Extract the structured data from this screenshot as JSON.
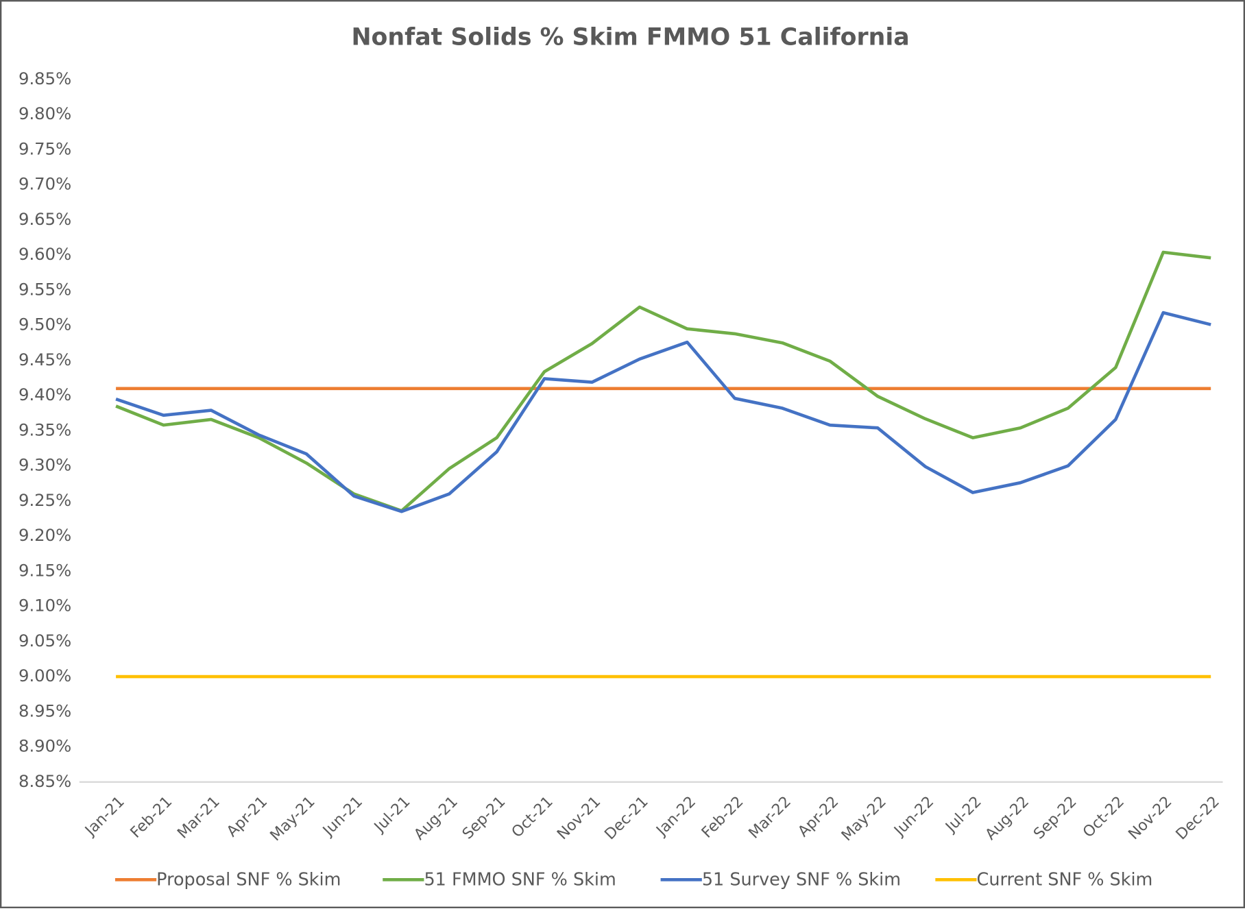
{
  "chart_data": {
    "type": "line",
    "title": "Nonfat Solids % Skim FMMO 51 California",
    "categories": [
      "Jan-21",
      "Feb-21",
      "Mar-21",
      "Apr-21",
      "May-21",
      "Jun-21",
      "Jul-21",
      "Aug-21",
      "Sep-21",
      "Oct-21",
      "Nov-21",
      "Dec-21",
      "Jan-22",
      "Feb-22",
      "Mar-22",
      "Apr-22",
      "May-22",
      "Jun-22",
      "Jul-22",
      "Aug-22",
      "Sep-22",
      "Oct-22",
      "Nov-22",
      "Dec-22"
    ],
    "series": [
      {
        "name": "Proposal SNF % Skim",
        "color": "#ed7d31",
        "values": [
          9.41,
          9.41,
          9.41,
          9.41,
          9.41,
          9.41,
          9.41,
          9.41,
          9.41,
          9.41,
          9.41,
          9.41,
          9.41,
          9.41,
          9.41,
          9.41,
          9.41,
          9.41,
          9.41,
          9.41,
          9.41,
          9.41,
          9.41,
          9.41
        ]
      },
      {
        "name": "51 FMMO SNF % Skim",
        "color": "#70ad47",
        "values": [
          9.385,
          9.358,
          9.366,
          9.34,
          9.304,
          9.26,
          9.236,
          9.296,
          9.34,
          9.434,
          9.474,
          9.526,
          9.495,
          9.488,
          9.475,
          9.449,
          9.399,
          9.367,
          9.34,
          9.354,
          9.382,
          9.44,
          9.604,
          9.596
        ]
      },
      {
        "name": "51 Survey SNF % Skim",
        "color": "#4472c4",
        "values": [
          9.395,
          9.372,
          9.379,
          9.344,
          9.317,
          9.257,
          9.235,
          9.26,
          9.32,
          9.424,
          9.419,
          9.452,
          9.476,
          9.396,
          9.382,
          9.358,
          9.354,
          9.299,
          9.262,
          9.276,
          9.3,
          9.366,
          9.518,
          9.501
        ]
      },
      {
        "name": "Current SNF % Skim",
        "color": "#ffc000",
        "values": [
          9.0,
          9.0,
          9.0,
          9.0,
          9.0,
          9.0,
          9.0,
          9.0,
          9.0,
          9.0,
          9.0,
          9.0,
          9.0,
          9.0,
          9.0,
          9.0,
          9.0,
          9.0,
          9.0,
          9.0,
          9.0,
          9.0,
          9.0,
          9.0
        ]
      }
    ],
    "ylim": [
      8.85,
      9.85
    ],
    "yticks": [
      {
        "value": 8.85,
        "label": "8.85%"
      },
      {
        "value": 8.9,
        "label": "8.90%"
      },
      {
        "value": 8.95,
        "label": "8.95%"
      },
      {
        "value": 9.0,
        "label": "9.00%"
      },
      {
        "value": 9.05,
        "label": "9.05%"
      },
      {
        "value": 9.1,
        "label": "9.10%"
      },
      {
        "value": 9.15,
        "label": "9.15%"
      },
      {
        "value": 9.2,
        "label": "9.20%"
      },
      {
        "value": 9.25,
        "label": "9.25%"
      },
      {
        "value": 9.3,
        "label": "9.30%"
      },
      {
        "value": 9.35,
        "label": "9.35%"
      },
      {
        "value": 9.4,
        "label": "9.40%"
      },
      {
        "value": 9.45,
        "label": "9.45%"
      },
      {
        "value": 9.5,
        "label": "9.50%"
      },
      {
        "value": 9.55,
        "label": "9.55%"
      },
      {
        "value": 9.6,
        "label": "9.60%"
      },
      {
        "value": 9.65,
        "label": "9.65%"
      },
      {
        "value": 9.7,
        "label": "9.70%"
      },
      {
        "value": 9.75,
        "label": "9.75%"
      },
      {
        "value": 9.8,
        "label": "9.80%"
      },
      {
        "value": 9.85,
        "label": "9.85%"
      }
    ],
    "grid": false,
    "legend": "bottom"
  }
}
